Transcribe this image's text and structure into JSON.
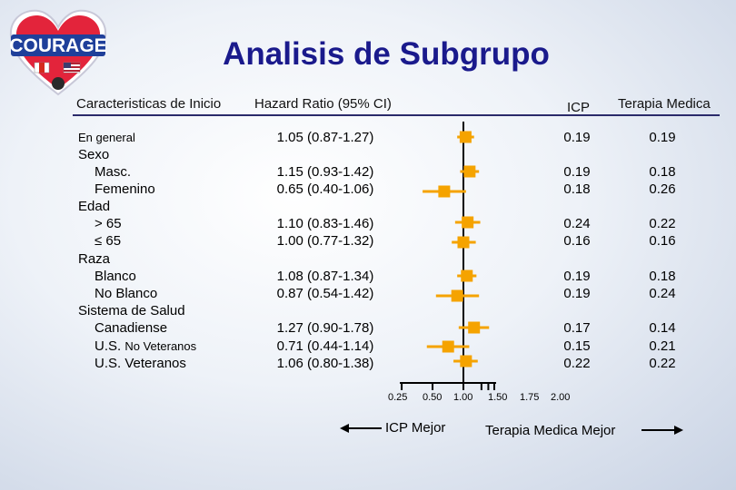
{
  "logo": {
    "text": "COURAGE",
    "heart_color": "#e3243b",
    "outline_color": "#ffffff"
  },
  "title": "Analisis de Subgrupo",
  "headers": {
    "characteristics": "Caracteristicas de Inicio",
    "hazard_ratio": "Hazard Ratio (95% CI)",
    "pci": "ICP",
    "medical": "Terapia Medica"
  },
  "labels": [
    {
      "text": "En general"
    },
    {
      "text": "Sexo"
    },
    {
      "text": "Masc."
    },
    {
      "text": "Femenino"
    },
    {
      "text": "Edad"
    },
    {
      "text": "> 65"
    },
    {
      "text": "≤ 65"
    },
    {
      "text": "Raza"
    },
    {
      "text": "Blanco"
    },
    {
      "text": "No Blanco"
    },
    {
      "text": "Sistema de Salud"
    },
    {
      "text": "Canadiense"
    },
    {
      "text": "U.S.",
      "suffix": "No Veteranos"
    },
    {
      "text": "U.S. Veteranos"
    }
  ],
  "chart_data": {
    "type": "forest",
    "x_axis": {
      "scale": "log",
      "reference_line": 1.0,
      "ticks": [
        0.25,
        0.5,
        1.0,
        1.5,
        1.75,
        2.0
      ],
      "tick_labels": [
        "0.25",
        "0.50",
        "1.00",
        "1.50",
        "1.75",
        "2.00"
      ]
    },
    "marker_color": "#f5a300",
    "rows": [
      {
        "hr": 1.05,
        "lo": 0.87,
        "hi": 1.27,
        "text": "1.05 (0.87-1.27)",
        "pci": "0.19",
        "medical": "0.19"
      },
      {
        "hr": 1.15,
        "lo": 0.93,
        "hi": 1.42,
        "text": "1.15 (0.93-1.42)",
        "pci": "0.19",
        "medical": "0.18"
      },
      {
        "hr": 0.65,
        "lo": 0.4,
        "hi": 1.06,
        "text": "0.65 (0.40-1.06)",
        "pci": "0.18",
        "medical": "0.26"
      },
      {
        "hr": 1.1,
        "lo": 0.83,
        "hi": 1.46,
        "text": "1.10 (0.83-1.46)",
        "pci": "0.24",
        "medical": "0.22"
      },
      {
        "hr": 1.0,
        "lo": 0.77,
        "hi": 1.32,
        "text": "1.00 (0.77-1.32)",
        "pci": "0.16",
        "medical": "0.16"
      },
      {
        "hr": 1.08,
        "lo": 0.87,
        "hi": 1.34,
        "text": "1.08 (0.87-1.34)",
        "pci": "0.19",
        "medical": "0.18"
      },
      {
        "hr": 0.87,
        "lo": 0.54,
        "hi": 1.42,
        "text": "0.87 (0.54-1.42)",
        "pci": "0.19",
        "medical": "0.24"
      },
      {
        "hr": 1.27,
        "lo": 0.9,
        "hi": 1.78,
        "text": "1.27 (0.90-1.78)",
        "pci": "0.17",
        "medical": "0.14"
      },
      {
        "hr": 0.71,
        "lo": 0.44,
        "hi": 1.14,
        "text": "0.71 (0.44-1.14)",
        "pci": "0.15",
        "medical": "0.21"
      },
      {
        "hr": 1.06,
        "lo": 0.8,
        "hi": 1.38,
        "text": "1.06 (0.80-1.38)",
        "pci": "0.22",
        "medical": "0.22"
      }
    ],
    "legend": {
      "left": "ICP Mejor",
      "right": "Terapia Medica Mejor"
    }
  }
}
